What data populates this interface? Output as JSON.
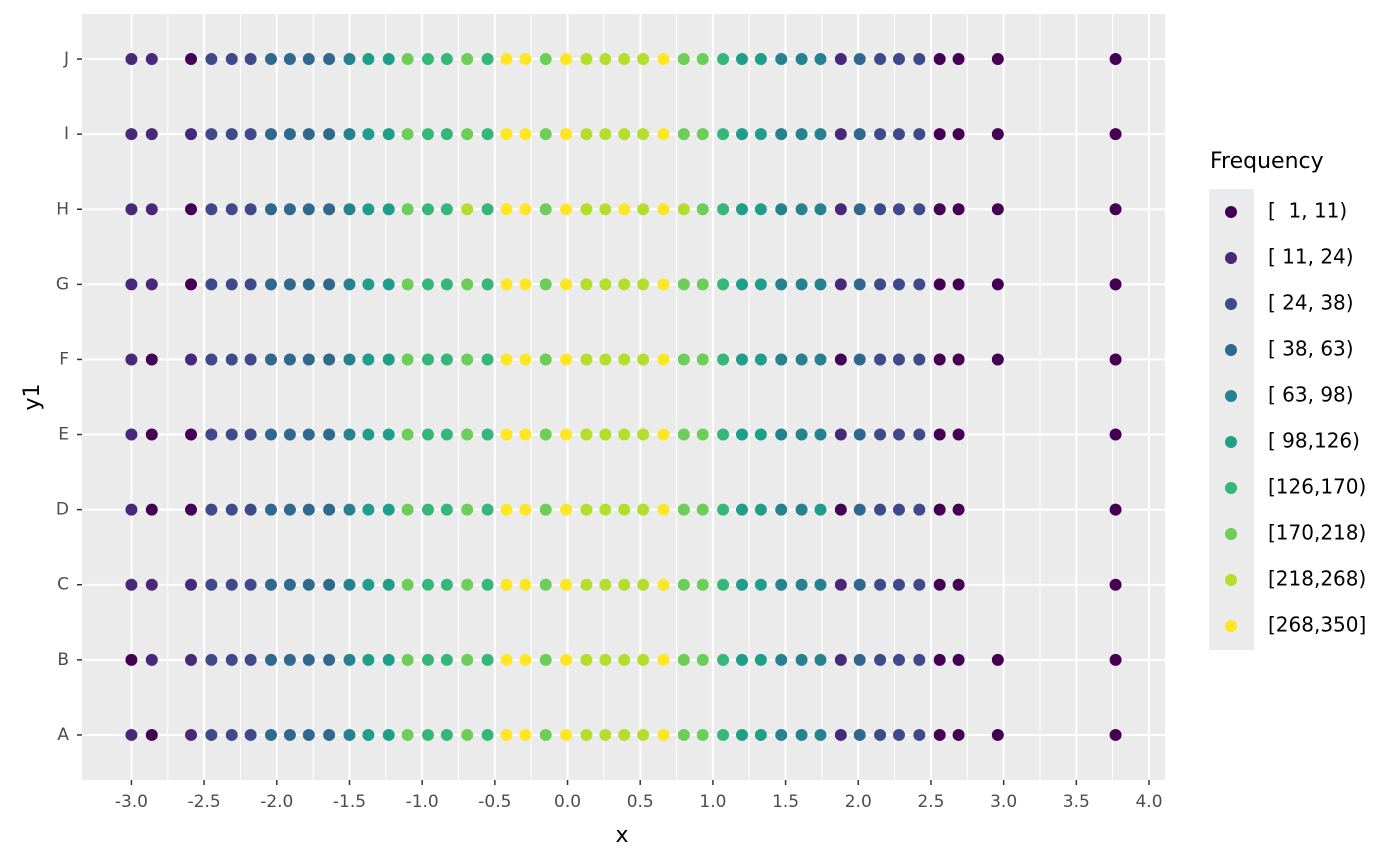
{
  "chart_data": {
    "type": "scatter",
    "x_label": "x",
    "y_label": "y1",
    "categories": [
      "A",
      "B",
      "C",
      "D",
      "E",
      "F",
      "G",
      "H",
      "I",
      "J"
    ],
    "xlim": [
      -3.34,
      4.11
    ],
    "xticks": [
      {
        "value": -3,
        "label": "-3.0"
      },
      {
        "value": -2.5,
        "label": "-2.5"
      },
      {
        "value": -2,
        "label": "-2.0"
      },
      {
        "value": -1.5,
        "label": "-1.5"
      },
      {
        "value": -1,
        "label": "-1.0"
      },
      {
        "value": -0.5,
        "label": "-0.5"
      },
      {
        "value": 0,
        "label": "0.0"
      },
      {
        "value": 0.5,
        "label": "0.5"
      },
      {
        "value": 1,
        "label": "1.0"
      },
      {
        "value": 1.5,
        "label": "1.5"
      },
      {
        "value": 2,
        "label": "2.0"
      },
      {
        "value": 2.5,
        "label": "2.5"
      },
      {
        "value": 3,
        "label": "3.0"
      },
      {
        "value": 3.5,
        "label": "3.5"
      },
      {
        "value": 4,
        "label": "4.0"
      }
    ],
    "grid": true,
    "legend_title": "Frequency",
    "legend_position": "right",
    "series": [
      {
        "name": "[  1, 11)",
        "color": "#440154"
      },
      {
        "name": "[ 11, 24)",
        "color": "#482878"
      },
      {
        "name": "[ 24, 38)",
        "color": "#3E4A89"
      },
      {
        "name": "[ 38, 63)",
        "color": "#31688E"
      },
      {
        "name": "[ 63, 98)",
        "color": "#26828E"
      },
      {
        "name": "[ 98,126)",
        "color": "#1F9E89"
      },
      {
        "name": "[126,170)",
        "color": "#35B779"
      },
      {
        "name": "[170,218)",
        "color": "#6DCD59"
      },
      {
        "name": "[218,268)",
        "color": "#B4DE2C"
      },
      {
        "name": "[268,350]",
        "color": "#FDE725"
      }
    ],
    "rows": [
      {
        "x": [
          -3,
          -2.86,
          -2.59,
          -2.45,
          -2.31,
          -2.18,
          -2.04,
          -1.91,
          -1.78,
          -1.64,
          -1.5,
          -1.37,
          -1.23,
          -1.1,
          -0.96,
          -0.83,
          -0.69,
          -0.55,
          -0.42,
          -0.29,
          -0.15,
          -0.01,
          0.13,
          0.26,
          0.39,
          0.52,
          0.66,
          0.8,
          0.93,
          1.07,
          1.2,
          1.33,
          1.47,
          1.61,
          1.74,
          1.88,
          2.01,
          2.15,
          2.28,
          2.42,
          2.56,
          2.69,
          2.96,
          3.77
        ],
        "group": [
          1,
          0,
          1,
          2,
          2,
          2,
          3,
          3,
          3,
          3,
          4,
          5,
          5,
          7,
          6,
          6,
          7,
          6,
          9,
          9,
          7,
          9,
          8,
          8,
          8,
          8,
          9,
          7,
          7,
          6,
          5,
          5,
          4,
          4,
          4,
          1,
          3,
          2,
          2,
          2,
          0,
          0,
          0,
          0
        ]
      },
      {
        "x": [
          -3,
          -2.86,
          -2.59,
          -2.45,
          -2.31,
          -2.18,
          -2.04,
          -1.91,
          -1.78,
          -1.64,
          -1.5,
          -1.37,
          -1.23,
          -1.1,
          -0.96,
          -0.83,
          -0.69,
          -0.55,
          -0.42,
          -0.29,
          -0.15,
          -0.01,
          0.13,
          0.26,
          0.39,
          0.52,
          0.66,
          0.8,
          0.93,
          1.07,
          1.2,
          1.33,
          1.47,
          1.61,
          1.74,
          1.88,
          2.01,
          2.15,
          2.28,
          2.42,
          2.56,
          2.69,
          2.96,
          3.77
        ],
        "group": [
          0,
          1,
          1,
          2,
          2,
          2,
          3,
          3,
          3,
          3,
          4,
          5,
          5,
          7,
          6,
          6,
          7,
          6,
          9,
          9,
          7,
          9,
          8,
          8,
          8,
          8,
          9,
          7,
          7,
          6,
          5,
          5,
          4,
          4,
          4,
          1,
          3,
          2,
          2,
          2,
          0,
          0,
          0,
          0
        ]
      },
      {
        "x": [
          -3,
          -2.86,
          -2.59,
          -2.45,
          -2.31,
          -2.18,
          -2.04,
          -1.91,
          -1.78,
          -1.64,
          -1.5,
          -1.37,
          -1.23,
          -1.1,
          -0.96,
          -0.83,
          -0.69,
          -0.55,
          -0.42,
          -0.29,
          -0.15,
          -0.01,
          0.13,
          0.26,
          0.39,
          0.52,
          0.66,
          0.8,
          0.93,
          1.07,
          1.2,
          1.33,
          1.47,
          1.61,
          1.74,
          1.88,
          2.01,
          2.15,
          2.28,
          2.42,
          2.56,
          2.69,
          3.77
        ],
        "group": [
          1,
          1,
          1,
          2,
          2,
          2,
          3,
          3,
          3,
          3,
          4,
          5,
          5,
          7,
          6,
          6,
          7,
          6,
          9,
          9,
          7,
          9,
          8,
          8,
          8,
          8,
          9,
          7,
          7,
          6,
          5,
          5,
          4,
          4,
          4,
          1,
          3,
          2,
          2,
          2,
          0,
          0,
          0
        ]
      },
      {
        "x": [
          -3,
          -2.86,
          -2.59,
          -2.45,
          -2.31,
          -2.18,
          -2.04,
          -1.91,
          -1.78,
          -1.64,
          -1.5,
          -1.37,
          -1.23,
          -1.1,
          -0.96,
          -0.83,
          -0.69,
          -0.55,
          -0.42,
          -0.29,
          -0.15,
          -0.01,
          0.13,
          0.26,
          0.39,
          0.52,
          0.66,
          0.8,
          0.93,
          1.07,
          1.2,
          1.33,
          1.47,
          1.61,
          1.74,
          1.88,
          2.01,
          2.15,
          2.28,
          2.42,
          2.56,
          2.69,
          3.77
        ],
        "group": [
          1,
          0,
          0,
          2,
          2,
          2,
          3,
          3,
          3,
          3,
          4,
          5,
          5,
          7,
          6,
          6,
          7,
          6,
          9,
          9,
          7,
          9,
          8,
          8,
          8,
          8,
          9,
          7,
          7,
          6,
          5,
          5,
          4,
          4,
          5,
          0,
          3,
          2,
          2,
          2,
          0,
          0,
          0
        ]
      },
      {
        "x": [
          -3,
          -2.86,
          -2.59,
          -2.45,
          -2.31,
          -2.18,
          -2.04,
          -1.91,
          -1.78,
          -1.64,
          -1.5,
          -1.37,
          -1.23,
          -1.1,
          -0.96,
          -0.83,
          -0.69,
          -0.55,
          -0.42,
          -0.29,
          -0.15,
          -0.01,
          0.13,
          0.26,
          0.39,
          0.52,
          0.66,
          0.8,
          0.93,
          1.07,
          1.2,
          1.33,
          1.47,
          1.61,
          1.74,
          1.88,
          2.01,
          2.15,
          2.28,
          2.42,
          2.56,
          2.69,
          3.77
        ],
        "group": [
          1,
          0,
          0,
          2,
          2,
          2,
          3,
          3,
          3,
          3,
          4,
          5,
          5,
          7,
          6,
          6,
          7,
          6,
          9,
          9,
          7,
          9,
          8,
          8,
          8,
          8,
          9,
          7,
          7,
          6,
          5,
          5,
          4,
          4,
          4,
          1,
          3,
          2,
          2,
          2,
          0,
          0,
          0
        ]
      },
      {
        "x": [
          -3,
          -2.86,
          -2.59,
          -2.45,
          -2.31,
          -2.18,
          -2.04,
          -1.91,
          -1.78,
          -1.64,
          -1.5,
          -1.37,
          -1.23,
          -1.1,
          -0.96,
          -0.83,
          -0.69,
          -0.55,
          -0.42,
          -0.29,
          -0.15,
          -0.01,
          0.13,
          0.26,
          0.39,
          0.52,
          0.66,
          0.8,
          0.93,
          1.07,
          1.2,
          1.33,
          1.47,
          1.61,
          1.74,
          1.88,
          2.01,
          2.15,
          2.28,
          2.42,
          2.56,
          2.69,
          2.96,
          3.77
        ],
        "group": [
          1,
          0,
          1,
          2,
          2,
          2,
          3,
          3,
          3,
          3,
          4,
          5,
          5,
          7,
          6,
          6,
          7,
          6,
          9,
          9,
          7,
          9,
          8,
          8,
          8,
          8,
          9,
          7,
          7,
          6,
          5,
          5,
          4,
          4,
          4,
          0,
          3,
          2,
          2,
          2,
          0,
          0,
          0,
          0
        ]
      },
      {
        "x": [
          -3,
          -2.86,
          -2.59,
          -2.45,
          -2.31,
          -2.18,
          -2.04,
          -1.91,
          -1.78,
          -1.64,
          -1.5,
          -1.37,
          -1.23,
          -1.1,
          -0.96,
          -0.83,
          -0.69,
          -0.55,
          -0.42,
          -0.29,
          -0.15,
          -0.01,
          0.13,
          0.26,
          0.39,
          0.52,
          0.66,
          0.8,
          0.93,
          1.07,
          1.2,
          1.33,
          1.47,
          1.61,
          1.74,
          1.88,
          2.01,
          2.15,
          2.28,
          2.42,
          2.56,
          2.69,
          2.96,
          3.77
        ],
        "group": [
          1,
          1,
          0,
          2,
          2,
          2,
          3,
          3,
          3,
          3,
          4,
          5,
          5,
          7,
          6,
          6,
          7,
          6,
          9,
          9,
          7,
          9,
          8,
          8,
          8,
          8,
          9,
          7,
          7,
          6,
          5,
          5,
          4,
          4,
          4,
          1,
          3,
          2,
          2,
          2,
          0,
          0,
          0,
          0
        ]
      },
      {
        "x": [
          -3,
          -2.86,
          -2.59,
          -2.45,
          -2.31,
          -2.18,
          -2.04,
          -1.91,
          -1.78,
          -1.64,
          -1.5,
          -1.37,
          -1.23,
          -1.1,
          -0.96,
          -0.83,
          -0.69,
          -0.55,
          -0.42,
          -0.29,
          -0.15,
          -0.01,
          0.13,
          0.26,
          0.39,
          0.52,
          0.66,
          0.8,
          0.93,
          1.07,
          1.2,
          1.33,
          1.47,
          1.61,
          1.74,
          1.88,
          2.01,
          2.15,
          2.28,
          2.42,
          2.56,
          2.69,
          2.96,
          3.77
        ],
        "group": [
          1,
          1,
          0,
          2,
          2,
          2,
          3,
          3,
          3,
          3,
          4,
          5,
          5,
          7,
          6,
          6,
          8,
          6,
          9,
          9,
          7,
          9,
          8,
          8,
          9,
          8,
          9,
          8,
          7,
          6,
          5,
          5,
          4,
          4,
          4,
          1,
          3,
          2,
          2,
          2,
          0,
          0,
          0,
          0
        ]
      },
      {
        "x": [
          -3,
          -2.86,
          -2.59,
          -2.45,
          -2.31,
          -2.18,
          -2.04,
          -1.91,
          -1.78,
          -1.64,
          -1.5,
          -1.37,
          -1.23,
          -1.1,
          -0.96,
          -0.83,
          -0.69,
          -0.55,
          -0.42,
          -0.29,
          -0.15,
          -0.01,
          0.13,
          0.26,
          0.39,
          0.52,
          0.66,
          0.8,
          0.93,
          1.07,
          1.2,
          1.33,
          1.47,
          1.61,
          1.74,
          1.88,
          2.01,
          2.15,
          2.28,
          2.42,
          2.56,
          2.69,
          2.96,
          3.77
        ],
        "group": [
          1,
          1,
          1,
          2,
          2,
          2,
          3,
          3,
          3,
          3,
          4,
          5,
          5,
          7,
          6,
          6,
          7,
          6,
          9,
          9,
          7,
          9,
          8,
          8,
          8,
          8,
          9,
          7,
          7,
          6,
          5,
          5,
          4,
          4,
          4,
          1,
          3,
          2,
          2,
          2,
          0,
          0,
          0,
          0
        ]
      },
      {
        "x": [
          -3,
          -2.86,
          -2.59,
          -2.45,
          -2.31,
          -2.18,
          -2.04,
          -1.91,
          -1.78,
          -1.64,
          -1.5,
          -1.37,
          -1.23,
          -1.1,
          -0.96,
          -0.83,
          -0.69,
          -0.55,
          -0.42,
          -0.29,
          -0.15,
          -0.01,
          0.13,
          0.26,
          0.39,
          0.52,
          0.66,
          0.8,
          0.93,
          1.07,
          1.2,
          1.33,
          1.47,
          1.61,
          1.74,
          1.88,
          2.01,
          2.15,
          2.28,
          2.42,
          2.56,
          2.69,
          2.96,
          3.77
        ],
        "group": [
          1,
          1,
          0,
          2,
          2,
          2,
          3,
          3,
          3,
          3,
          4,
          5,
          5,
          7,
          6,
          6,
          7,
          6,
          9,
          9,
          7,
          9,
          8,
          8,
          8,
          8,
          9,
          7,
          7,
          6,
          5,
          5,
          4,
          4,
          4,
          1,
          3,
          2,
          2,
          2,
          0,
          0,
          0,
          0
        ]
      }
    ]
  }
}
